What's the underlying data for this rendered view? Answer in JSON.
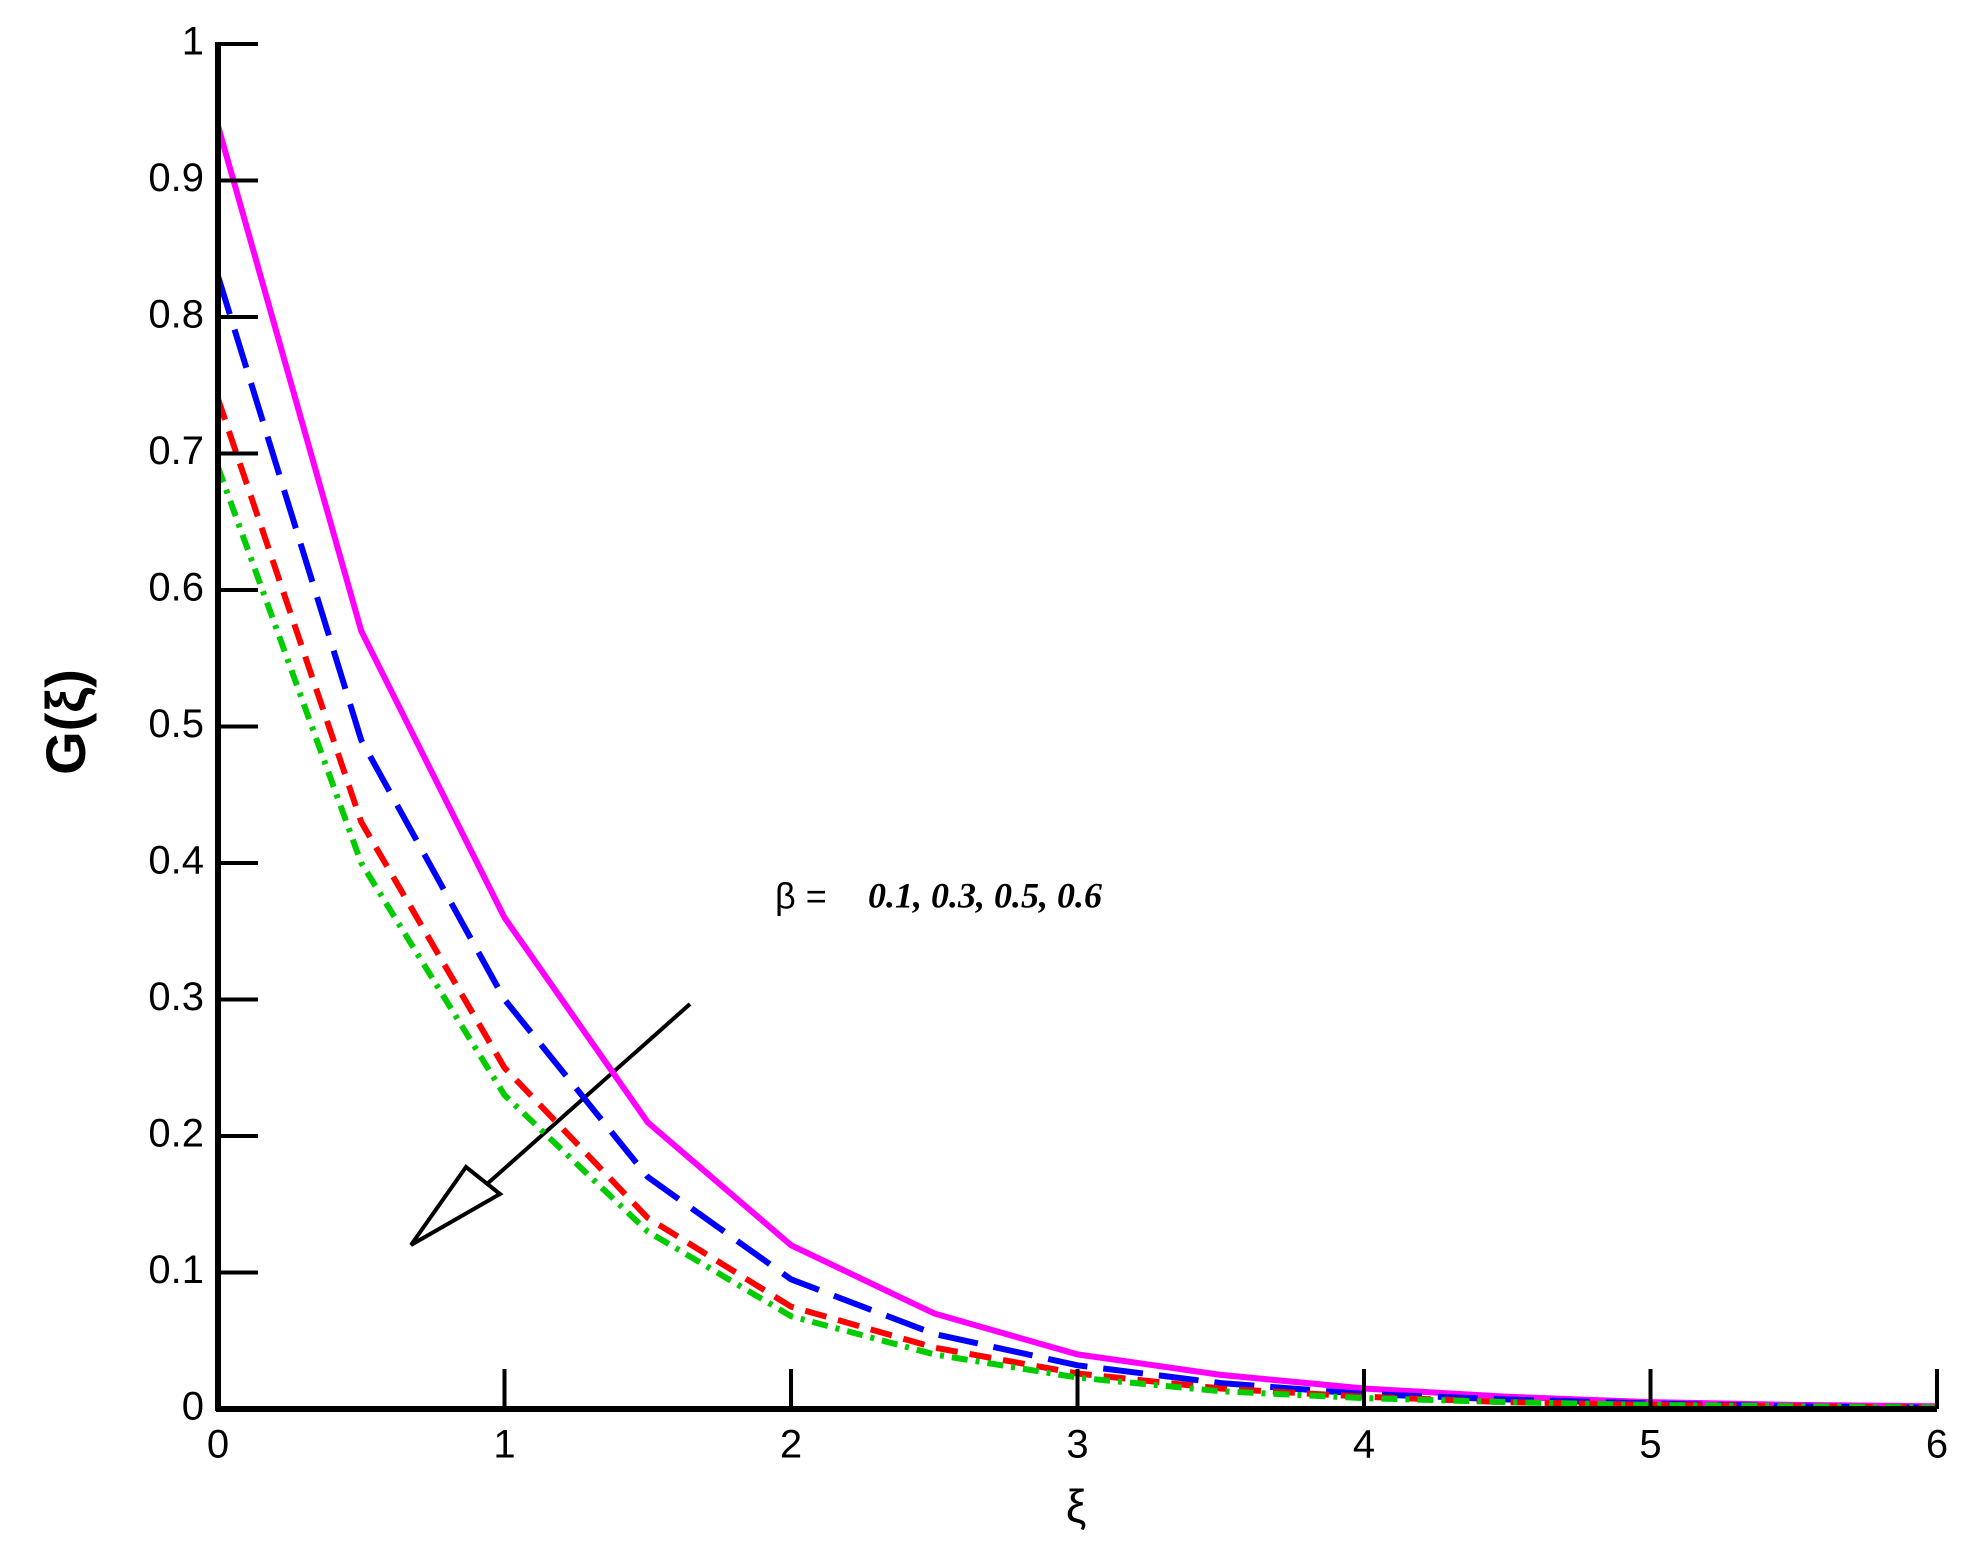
{
  "chart_data": {
    "type": "line",
    "xlabel": "ξ",
    "ylabel": "G(ξ)",
    "annotation": {
      "symbol": "β =",
      "values": "0.1, 0.3, 0.5, 0.6"
    },
    "x": [
      0,
      0.5,
      1,
      1.5,
      2,
      2.5,
      3,
      3.5,
      4,
      4.5,
      5,
      5.5,
      6
    ],
    "series": [
      {
        "color": "#ff00ff",
        "dash": "solid",
        "values": [
          0.94,
          0.57,
          0.36,
          0.21,
          0.12,
          0.07,
          0.04,
          0.025,
          0.015,
          0.009,
          0.005,
          0.003,
          0.002
        ]
      },
      {
        "color": "#0000ff",
        "dash": "long",
        "values": [
          0.83,
          0.49,
          0.3,
          0.17,
          0.095,
          0.055,
          0.032,
          0.019,
          0.011,
          0.007,
          0.004,
          0.002,
          0.001
        ]
      },
      {
        "color": "#ff0000",
        "dash": "short",
        "values": [
          0.74,
          0.43,
          0.25,
          0.14,
          0.075,
          0.045,
          0.026,
          0.015,
          0.009,
          0.005,
          0.003,
          0.002,
          0.001
        ]
      },
      {
        "color": "#00cc00",
        "dash": "dashdot",
        "values": [
          0.69,
          0.4,
          0.23,
          0.13,
          0.068,
          0.04,
          0.023,
          0.013,
          0.008,
          0.005,
          0.003,
          0.002,
          0.001
        ]
      }
    ],
    "xlim": [
      0,
      6
    ],
    "xticks": [
      0,
      1,
      2,
      3,
      4,
      5,
      6
    ],
    "ylim": [
      0,
      1
    ],
    "yticks": [
      0,
      0.1,
      0.2,
      0.3,
      0.4,
      0.5,
      0.6,
      0.7,
      0.8,
      0.9,
      1
    ],
    "grid": false
  }
}
